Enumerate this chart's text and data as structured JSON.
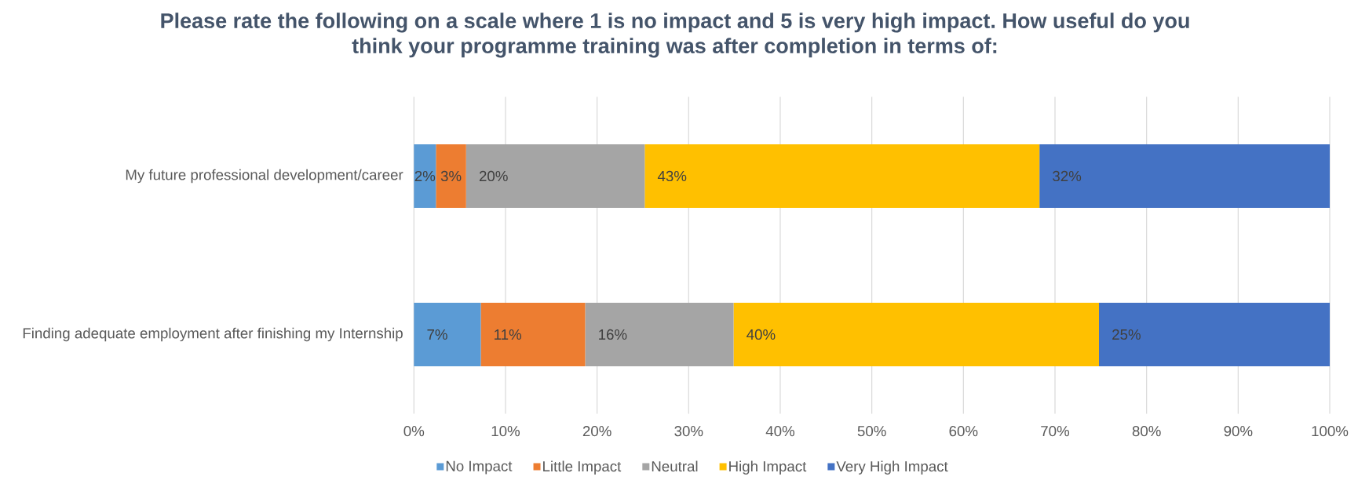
{
  "chart_data": {
    "type": "bar",
    "orientation": "horizontal",
    "stacked": true,
    "title": "Please rate the following on a scale where 1 is no impact and 5 is very high impact. How useful do you think your programme training was after completion in terms of:",
    "categories": [
      "My future professional development/career",
      "Finding adequate employment after finishing my Internship"
    ],
    "series": [
      {
        "name": "No Impact",
        "color": "#5b9bd5",
        "values": [
          2.4,
          7.3
        ],
        "value_labels": [
          "2%",
          "7%"
        ]
      },
      {
        "name": "Little Impact",
        "color": "#ed7d31",
        "values": [
          3.3,
          11.4
        ],
        "value_labels": [
          "3%",
          "11%"
        ]
      },
      {
        "name": "Neutral",
        "color": "#a5a5a5",
        "values": [
          19.5,
          16.2
        ],
        "value_labels": [
          "20%",
          "16%"
        ]
      },
      {
        "name": "High Impact",
        "color": "#ffc000",
        "values": [
          43.1,
          39.9
        ],
        "value_labels": [
          "43%",
          "40%"
        ]
      },
      {
        "name": "Very High Impact",
        "color": "#4472c4",
        "values": [
          31.7,
          25.2
        ],
        "value_labels": [
          "32%",
          "25%"
        ]
      }
    ],
    "xlim": [
      0,
      100
    ],
    "xticks": [
      {
        "value": 0,
        "label": "0%"
      },
      {
        "value": 10,
        "label": "10%"
      },
      {
        "value": 20,
        "label": "20%"
      },
      {
        "value": 30,
        "label": "30%"
      },
      {
        "value": 40,
        "label": "40%"
      },
      {
        "value": 50,
        "label": "50%"
      },
      {
        "value": 60,
        "label": "60%"
      },
      {
        "value": 70,
        "label": "70%"
      },
      {
        "value": 80,
        "label": "80%"
      },
      {
        "value": 90,
        "label": "90%"
      },
      {
        "value": 100,
        "label": "100%"
      }
    ],
    "grid": "x",
    "legend": "bottom"
  }
}
